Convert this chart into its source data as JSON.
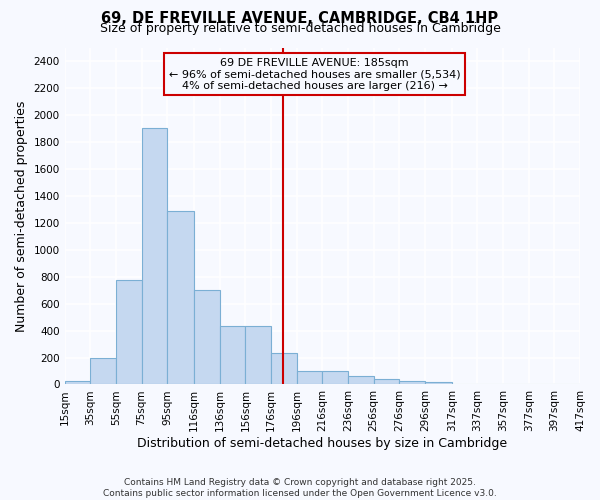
{
  "title": "69, DE FREVILLE AVENUE, CAMBRIDGE, CB4 1HP",
  "subtitle": "Size of property relative to semi-detached houses in Cambridge",
  "xlabel": "Distribution of semi-detached houses by size in Cambridge",
  "ylabel": "Number of semi-detached properties",
  "bar_color": "#c5d8f0",
  "bar_edge_color": "#7bafd4",
  "background_color": "#f7f9ff",
  "grid_color": "#ffffff",
  "vline_value": 185,
  "vline_color": "#cc0000",
  "annotation_text": "69 DE FREVILLE AVENUE: 185sqm\n← 96% of semi-detached houses are smaller (5,534)\n4% of semi-detached houses are larger (216) →",
  "annotation_box_color": "#cc0000",
  "bins": [
    15,
    35,
    55,
    75,
    95,
    116,
    136,
    156,
    176,
    196,
    216,
    236,
    256,
    276,
    296,
    317,
    337,
    357,
    377,
    397,
    417
  ],
  "bin_labels": [
    "15sqm",
    "35sqm",
    "55sqm",
    "75sqm",
    "95sqm",
    "116sqm",
    "136sqm",
    "156sqm",
    "176sqm",
    "196sqm",
    "216sqm",
    "236sqm",
    "256sqm",
    "276sqm",
    "296sqm",
    "317sqm",
    "337sqm",
    "357sqm",
    "377sqm",
    "397sqm",
    "417sqm"
  ],
  "counts": [
    25,
    200,
    775,
    1900,
    1285,
    700,
    435,
    435,
    230,
    100,
    100,
    60,
    40,
    25,
    20,
    5,
    3,
    2,
    1,
    1
  ],
  "ylim": [
    0,
    2500
  ],
  "yticks": [
    0,
    200,
    400,
    600,
    800,
    1000,
    1200,
    1400,
    1600,
    1800,
    2000,
    2200,
    2400
  ],
  "footer": "Contains HM Land Registry data © Crown copyright and database right 2025.\nContains public sector information licensed under the Open Government Licence v3.0.",
  "title_fontsize": 10.5,
  "subtitle_fontsize": 9,
  "axis_label_fontsize": 9,
  "tick_fontsize": 7.5,
  "footer_fontsize": 6.5,
  "annotation_fontsize": 8
}
